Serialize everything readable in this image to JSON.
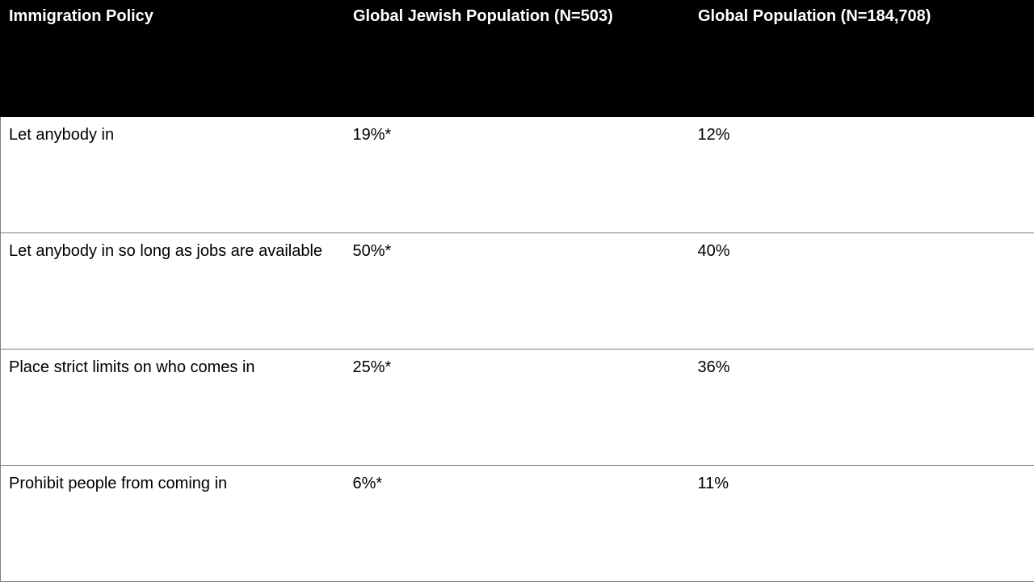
{
  "chart_data": {
    "type": "table",
    "columns": [
      "Immigration Policy",
      "Global Jewish Population (N=503)",
      "Global Population (N=184,708)"
    ],
    "rows": [
      [
        "Let anybody in",
        "19%*",
        "12%"
      ],
      [
        "Let anybody in so long as jobs are available",
        "50%*",
        "40%"
      ],
      [
        "Place strict limits on who comes in",
        "25%*",
        "36%"
      ],
      [
        "Prohibit people from coming in",
        "6%*",
        "11%"
      ]
    ]
  },
  "colors": {
    "header_bg": "#000000",
    "header_text": "#ffffff",
    "border": "#7f7f7f"
  }
}
